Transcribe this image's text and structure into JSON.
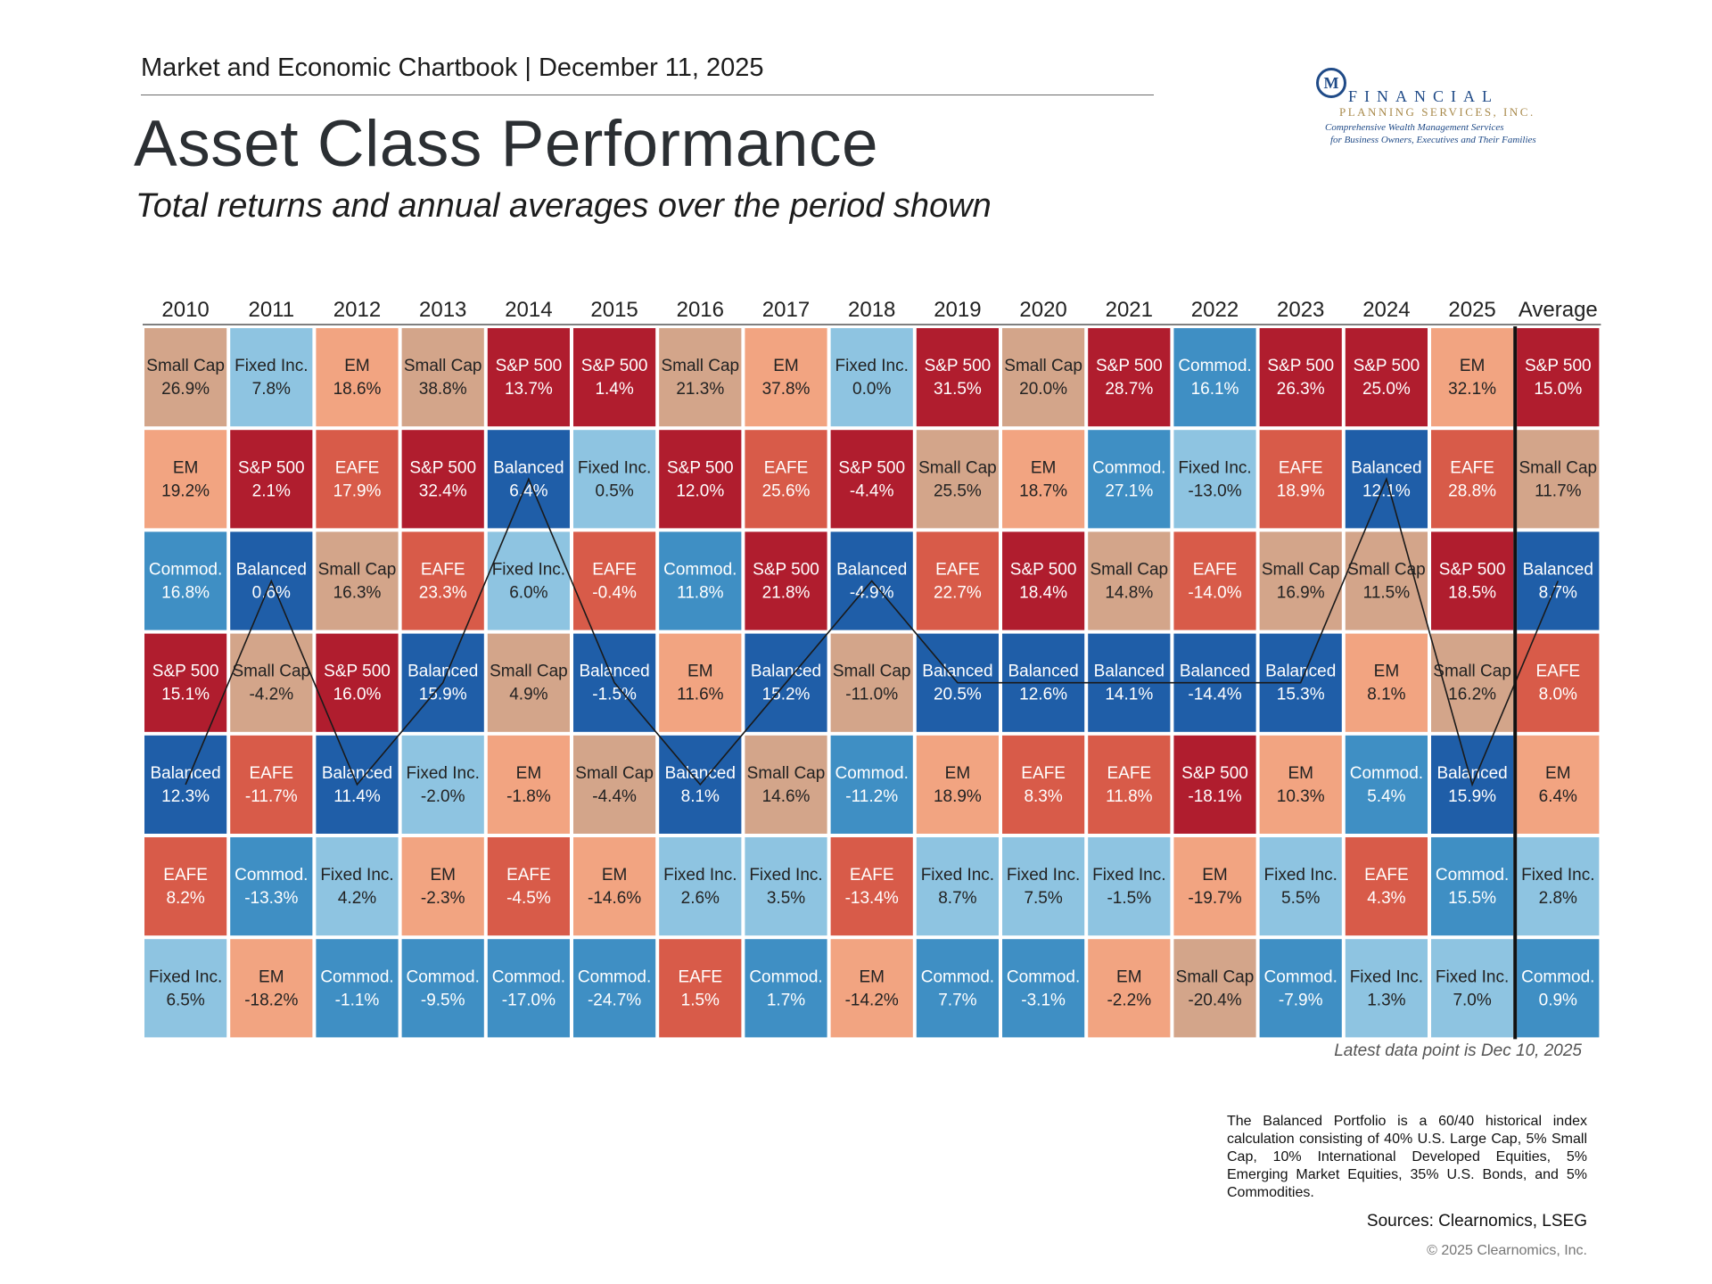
{
  "header": {
    "book_title": "Market and Economic Chartbook | December 11, 2025",
    "title": "Asset Class Performance",
    "subtitle": "Total returns and annual averages over the period shown"
  },
  "logo": {
    "mark": "M",
    "line1": "FINANCIAL",
    "line2": "PLANNING SERVICES, INC.",
    "line3": "Comprehensive Wealth Management Services",
    "line4": "for Business Owners, Executives and Their Families"
  },
  "colors": {
    "S&P 500": "#b01d2e",
    "EAFE": "#d85b49",
    "EM": "#f2a481",
    "Small Cap": "#d3a58a",
    "Fixed Inc.": "#8ec4e1",
    "Commod.": "#3f8fc4",
    "Balanced": "#1f5ea8"
  },
  "chart_data": {
    "type": "table",
    "columns": [
      "2010",
      "2011",
      "2012",
      "2013",
      "2014",
      "2015",
      "2016",
      "2017",
      "2018",
      "2019",
      "2020",
      "2021",
      "2022",
      "2023",
      "2024",
      "2025",
      "Average"
    ],
    "cells": [
      [
        [
          "Small Cap",
          "26.9%"
        ],
        [
          "EM",
          "19.2%"
        ],
        [
          "Commod.",
          "16.8%"
        ],
        [
          "S&P 500",
          "15.1%"
        ],
        [
          "Balanced",
          "12.3%"
        ],
        [
          "EAFE",
          "8.2%"
        ],
        [
          "Fixed Inc.",
          "6.5%"
        ]
      ],
      [
        [
          "Fixed Inc.",
          "7.8%"
        ],
        [
          "S&P 500",
          "2.1%"
        ],
        [
          "Balanced",
          "0.6%"
        ],
        [
          "Small Cap",
          "-4.2%"
        ],
        [
          "EAFE",
          "-11.7%"
        ],
        [
          "Commod.",
          "-13.3%"
        ],
        [
          "EM",
          "-18.2%"
        ]
      ],
      [
        [
          "EM",
          "18.6%"
        ],
        [
          "EAFE",
          "17.9%"
        ],
        [
          "Small Cap",
          "16.3%"
        ],
        [
          "S&P 500",
          "16.0%"
        ],
        [
          "Balanced",
          "11.4%"
        ],
        [
          "Fixed Inc.",
          "4.2%"
        ],
        [
          "Commod.",
          "-1.1%"
        ]
      ],
      [
        [
          "Small Cap",
          "38.8%"
        ],
        [
          "S&P 500",
          "32.4%"
        ],
        [
          "EAFE",
          "23.3%"
        ],
        [
          "Balanced",
          "15.9%"
        ],
        [
          "Fixed Inc.",
          "-2.0%"
        ],
        [
          "EM",
          "-2.3%"
        ],
        [
          "Commod.",
          "-9.5%"
        ]
      ],
      [
        [
          "S&P 500",
          "13.7%"
        ],
        [
          "Balanced",
          "6.4%"
        ],
        [
          "Fixed Inc.",
          "6.0%"
        ],
        [
          "Small Cap",
          "4.9%"
        ],
        [
          "EM",
          "-1.8%"
        ],
        [
          "EAFE",
          "-4.5%"
        ],
        [
          "Commod.",
          "-17.0%"
        ]
      ],
      [
        [
          "S&P 500",
          "1.4%"
        ],
        [
          "Fixed Inc.",
          "0.5%"
        ],
        [
          "EAFE",
          "-0.4%"
        ],
        [
          "Balanced",
          "-1.5%"
        ],
        [
          "Small Cap",
          "-4.4%"
        ],
        [
          "EM",
          "-14.6%"
        ],
        [
          "Commod.",
          "-24.7%"
        ]
      ],
      [
        [
          "Small Cap",
          "21.3%"
        ],
        [
          "S&P 500",
          "12.0%"
        ],
        [
          "Commod.",
          "11.8%"
        ],
        [
          "EM",
          "11.6%"
        ],
        [
          "Balanced",
          "8.1%"
        ],
        [
          "Fixed Inc.",
          "2.6%"
        ],
        [
          "EAFE",
          "1.5%"
        ]
      ],
      [
        [
          "EM",
          "37.8%"
        ],
        [
          "EAFE",
          "25.6%"
        ],
        [
          "S&P 500",
          "21.8%"
        ],
        [
          "Balanced",
          "15.2%"
        ],
        [
          "Small Cap",
          "14.6%"
        ],
        [
          "Fixed Inc.",
          "3.5%"
        ],
        [
          "Commod.",
          "1.7%"
        ]
      ],
      [
        [
          "Fixed Inc.",
          "0.0%"
        ],
        [
          "S&P 500",
          "-4.4%"
        ],
        [
          "Balanced",
          "-4.9%"
        ],
        [
          "Small Cap",
          "-11.0%"
        ],
        [
          "Commod.",
          "-11.2%"
        ],
        [
          "EAFE",
          "-13.4%"
        ],
        [
          "EM",
          "-14.2%"
        ]
      ],
      [
        [
          "S&P 500",
          "31.5%"
        ],
        [
          "Small Cap",
          "25.5%"
        ],
        [
          "EAFE",
          "22.7%"
        ],
        [
          "Balanced",
          "20.5%"
        ],
        [
          "EM",
          "18.9%"
        ],
        [
          "Fixed Inc.",
          "8.7%"
        ],
        [
          "Commod.",
          "7.7%"
        ]
      ],
      [
        [
          "Small Cap",
          "20.0%"
        ],
        [
          "EM",
          "18.7%"
        ],
        [
          "S&P 500",
          "18.4%"
        ],
        [
          "Balanced",
          "12.6%"
        ],
        [
          "EAFE",
          "8.3%"
        ],
        [
          "Fixed Inc.",
          "7.5%"
        ],
        [
          "Commod.",
          "-3.1%"
        ]
      ],
      [
        [
          "S&P 500",
          "28.7%"
        ],
        [
          "Commod.",
          "27.1%"
        ],
        [
          "Small Cap",
          "14.8%"
        ],
        [
          "Balanced",
          "14.1%"
        ],
        [
          "EAFE",
          "11.8%"
        ],
        [
          "Fixed Inc.",
          "-1.5%"
        ],
        [
          "EM",
          "-2.2%"
        ]
      ],
      [
        [
          "Commod.",
          "16.1%"
        ],
        [
          "Fixed Inc.",
          "-13.0%"
        ],
        [
          "EAFE",
          "-14.0%"
        ],
        [
          "Balanced",
          "-14.4%"
        ],
        [
          "S&P 500",
          "-18.1%"
        ],
        [
          "EM",
          "-19.7%"
        ],
        [
          "Small Cap",
          "-20.4%"
        ]
      ],
      [
        [
          "S&P 500",
          "26.3%"
        ],
        [
          "EAFE",
          "18.9%"
        ],
        [
          "Small Cap",
          "16.9%"
        ],
        [
          "Balanced",
          "15.3%"
        ],
        [
          "EM",
          "10.3%"
        ],
        [
          "Fixed Inc.",
          "5.5%"
        ],
        [
          "Commod.",
          "-7.9%"
        ]
      ],
      [
        [
          "S&P 500",
          "25.0%"
        ],
        [
          "Balanced",
          "12.1%"
        ],
        [
          "Small Cap",
          "11.5%"
        ],
        [
          "EM",
          "8.1%"
        ],
        [
          "Commod.",
          "5.4%"
        ],
        [
          "EAFE",
          "4.3%"
        ],
        [
          "Fixed Inc.",
          "1.3%"
        ]
      ],
      [
        [
          "EM",
          "32.1%"
        ],
        [
          "EAFE",
          "28.8%"
        ],
        [
          "S&P 500",
          "18.5%"
        ],
        [
          "Small Cap",
          "16.2%"
        ],
        [
          "Balanced",
          "15.9%"
        ],
        [
          "Commod.",
          "15.5%"
        ],
        [
          "Fixed Inc.",
          "7.0%"
        ]
      ],
      [
        [
          "S&P 500",
          "15.0%"
        ],
        [
          "Small Cap",
          "11.7%"
        ],
        [
          "Balanced",
          "8.7%"
        ],
        [
          "EAFE",
          "8.0%"
        ],
        [
          "EM",
          "6.4%"
        ],
        [
          "Fixed Inc.",
          "2.8%"
        ],
        [
          "Commod.",
          "0.9%"
        ]
      ]
    ],
    "highlight_series": "Balanced"
  },
  "notes": {
    "latest": "Latest data point is Dec 10, 2025",
    "footnote": "The Balanced Portfolio is a 60/40 historical index calculation consisting of 40% U.S. Large Cap, 5% Small Cap, 10% International Developed Equities, 5% Emerging Market Equities, 35% U.S. Bonds, and 5% Commodities.",
    "sources": "Sources: Clearnomics, LSEG",
    "copyright": "© 2025 Clearnomics, Inc."
  }
}
